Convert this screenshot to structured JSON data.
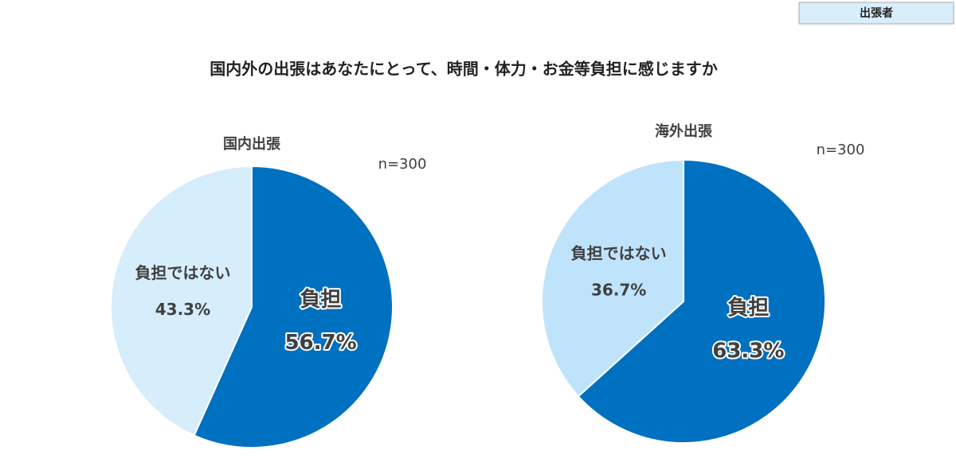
{
  "header": {
    "tag": "出張者",
    "title": "国内外の出張はあなたにとって、時間・体力・お金等負担に感じますか"
  },
  "chart_data": [
    {
      "type": "pie",
      "title": "国内出張",
      "note": "n=300",
      "categories": [
        "負担",
        "負担ではない"
      ],
      "values": [
        56.7,
        43.3
      ],
      "value_labels": [
        "56.7%",
        "43.3%"
      ],
      "colors": [
        "#0070c0",
        "#d6edfb"
      ]
    },
    {
      "type": "pie",
      "title": "海外出張",
      "note": "n=300",
      "categories": [
        "負担",
        "負担ではない"
      ],
      "values": [
        63.3,
        36.7
      ],
      "value_labels": [
        "63.3%",
        "36.7%"
      ],
      "colors": [
        "#0070c0",
        "#bfe3fb"
      ]
    }
  ]
}
